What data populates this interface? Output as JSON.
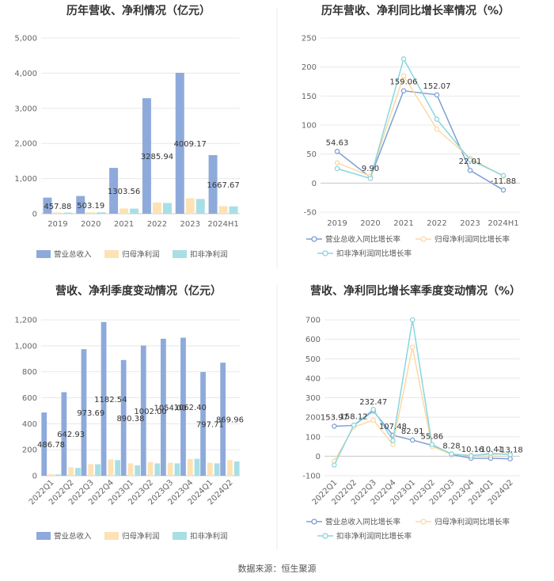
{
  "source_text": "数据来源：恒生聚源",
  "chart_data": [
    {
      "type": "bar",
      "title": "历年营收、净利情况（亿元）",
      "categories": [
        "2019",
        "2020",
        "2021",
        "2022",
        "2023",
        "2024H1"
      ],
      "ylim": [
        0,
        5000
      ],
      "yticks": [
        "0",
        "1,000",
        "2,000",
        "3,000",
        "4,000",
        "5,000"
      ],
      "grid": true,
      "legend_position": "bottom",
      "colors": [
        "#8eaadb",
        "#fde2b4",
        "#a8dfe4"
      ],
      "series": [
        {
          "name": "营业总收入",
          "values": [
            457.88,
            503.19,
            1303.56,
            3285.94,
            4009.17,
            1667.67
          ],
          "labels": [
            "457.88",
            "503.19",
            "1303.56",
            "3285.94",
            "4009.17",
            "1667.67"
          ]
        },
        {
          "name": "归母净利润",
          "values": [
            38,
            42,
            150,
            320,
            440,
            215
          ]
        },
        {
          "name": "扣非净利润",
          "values": [
            32,
            40,
            145,
            305,
            420,
            210
          ]
        }
      ]
    },
    {
      "type": "line",
      "title": "历年营收、净利同比增长率情况（%）",
      "categories": [
        "2019",
        "2020",
        "2021",
        "2022",
        "2023",
        "2024H1"
      ],
      "ylim": [
        -50,
        250
      ],
      "yticks": [
        "-50",
        "0",
        "50",
        "100",
        "150",
        "200",
        "250"
      ],
      "grid": true,
      "legend_position": "bottom",
      "colors": [
        "#7f9fd4",
        "#fdd9a3",
        "#88d6e0"
      ],
      "series": [
        {
          "name": "营业总收入同比增长率",
          "values": [
            54.63,
            9.9,
            159.06,
            152.07,
            22.01,
            -11.88
          ],
          "labels": [
            "54.63",
            "9.90",
            "159.06",
            "152.07",
            "22.01",
            "-11.88"
          ]
        },
        {
          "name": "归母净利润同比增长率",
          "values": [
            35,
            12,
            185,
            93,
            43,
            12
          ]
        },
        {
          "name": "扣非净利润同比增长率",
          "values": [
            25,
            8,
            214,
            110,
            40,
            13
          ]
        }
      ]
    },
    {
      "type": "bar",
      "title": "营收、净利季度变动情况（亿元）",
      "categories": [
        "2022Q1",
        "2022Q2",
        "2022Q3",
        "2022Q4",
        "2023Q1",
        "2023Q2",
        "2023Q3",
        "2023Q4",
        "2024Q1",
        "2024Q2"
      ],
      "ylim": [
        0,
        1200
      ],
      "yticks": [
        "0",
        "200",
        "400",
        "600",
        "800",
        "1,000",
        "1,200"
      ],
      "grid": true,
      "legend_position": "bottom",
      "colors": [
        "#8eaadb",
        "#fde2b4",
        "#a8dfe4"
      ],
      "series": [
        {
          "name": "营业总收入",
          "values": [
            486.78,
            642.93,
            973.69,
            1182.54,
            890.38,
            1002.0,
            1054.0,
            1062.4,
            797.71,
            869.96
          ],
          "labels": [
            "486.78",
            "642.93",
            "973.69",
            "1182.54",
            "890.38",
            "1002.00",
            "1054.00",
            "1062.40",
            "797.71",
            "869.96"
          ]
        },
        {
          "name": "归母净利润",
          "values": [
            12,
            65,
            90,
            125,
            95,
            105,
            100,
            128,
            100,
            120
          ]
        },
        {
          "name": "扣非净利润",
          "values": [
            10,
            60,
            88,
            120,
            80,
            95,
            95,
            130,
            95,
            110
          ]
        }
      ]
    },
    {
      "type": "line",
      "title": "营收、净利同比增长率季度变动情况（%）",
      "categories": [
        "2022Q1",
        "2022Q2",
        "2022Q3",
        "2022Q4",
        "2023Q1",
        "2023Q2",
        "2023Q3",
        "2023Q4",
        "2024Q1",
        "2024Q2"
      ],
      "ylim": [
        -100,
        700
      ],
      "yticks": [
        "-100",
        "0",
        "100",
        "200",
        "300",
        "400",
        "500",
        "600",
        "700"
      ],
      "grid": true,
      "legend_position": "bottom",
      "colors": [
        "#7f9fd4",
        "#fdd9a3",
        "#88d6e0"
      ],
      "series": [
        {
          "name": "营业总收入同比增长率",
          "values": [
            153.97,
            158.12,
            232.47,
            107.48,
            82.91,
            55.86,
            8.28,
            -10.16,
            -10.41,
            -13.18
          ],
          "labels": [
            "153.97",
            "158.12",
            "232.47",
            "107.48",
            "82.91",
            "55.86",
            "8.28",
            "-10.16",
            "-10.41",
            "-13.18"
          ]
        },
        {
          "name": "归母净利润同比增长率",
          "values": [
            -25,
            150,
            185,
            60,
            560,
            50,
            10,
            5,
            8,
            12
          ]
        },
        {
          "name": "扣非净利润同比增长率",
          "values": [
            -45,
            160,
            240,
            80,
            700,
            60,
            12,
            2,
            15,
            8
          ]
        }
      ]
    }
  ]
}
